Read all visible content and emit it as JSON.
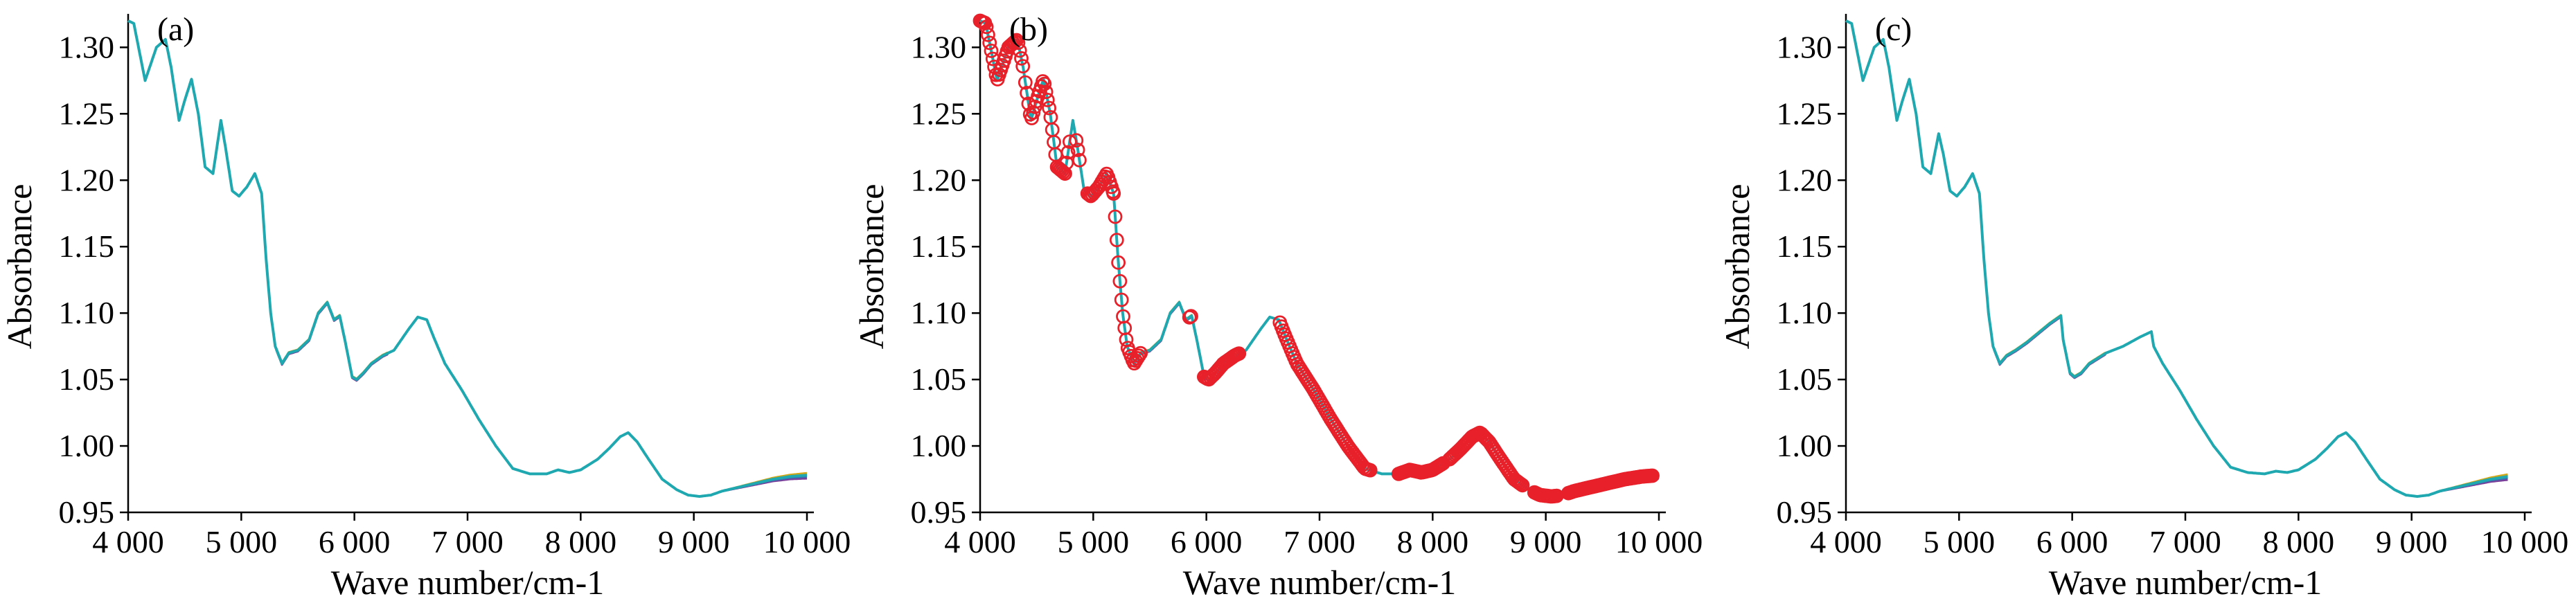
{
  "chart_data": [
    {
      "type": "line",
      "panel_label": "(a)",
      "xlabel": "Wave number/cm-1",
      "ylabel": "Absorbance",
      "xlim": [
        4000,
        10000
      ],
      "ylim": [
        0.95,
        1.32
      ],
      "xticks": [
        4000,
        5000,
        6000,
        7000,
        8000,
        9000,
        10000
      ],
      "xtick_labels": [
        "4 000",
        "5 000",
        "6 000",
        "7 000",
        "8 000",
        "9 000",
        "10 000"
      ],
      "yticks": [
        0.95,
        1.0,
        1.05,
        1.1,
        1.15,
        1.2,
        1.25,
        1.3
      ],
      "ytick_labels": [
        "0.95",
        "1.00",
        "1.05",
        "1.10",
        "1.15",
        "1.20",
        "1.25",
        "1.30"
      ],
      "grid": false,
      "series_colors": [
        "#7b3f99",
        "#3c6fb0",
        "#2e9e57",
        "#d1a818",
        "#1fa8b0"
      ],
      "series": [
        {
          "x": [
            4000,
            4050,
            4150,
            4250,
            4330,
            4380,
            4450,
            4500,
            4560,
            4620,
            4680,
            4750,
            4820,
            4860,
            4920,
            4980,
            5050,
            5120,
            5180,
            5220,
            5260,
            5300,
            5360,
            5420,
            5500,
            5600,
            5680,
            5760,
            5820,
            5870,
            5920,
            5980,
            6020,
            6080,
            6150,
            6250,
            6350,
            6480,
            6560,
            6640,
            6700,
            6800,
            6950,
            7100,
            7250,
            7400,
            7550,
            7700,
            7800,
            7900,
            8000,
            8150,
            8250,
            8350,
            8420,
            8500,
            8600,
            8720,
            8850,
            8950,
            9050,
            9150,
            9250,
            9400,
            9550,
            9700,
            9850,
            10000
          ],
          "y": [
            1.32,
            1.318,
            1.275,
            1.3,
            1.306,
            1.285,
            1.245,
            1.26,
            1.276,
            1.25,
            1.21,
            1.205,
            1.245,
            1.225,
            1.192,
            1.188,
            1.195,
            1.205,
            1.19,
            1.14,
            1.1,
            1.075,
            1.062,
            1.07,
            1.072,
            1.08,
            1.1,
            1.108,
            1.095,
            1.098,
            1.078,
            1.052,
            1.05,
            1.055,
            1.062,
            1.068,
            1.072,
            1.088,
            1.097,
            1.095,
            1.082,
            1.062,
            1.042,
            1.02,
            1.0,
            0.983,
            0.979,
            0.979,
            0.982,
            0.98,
            0.982,
            0.99,
            0.998,
            1.007,
            1.01,
            1.003,
            0.99,
            0.975,
            0.967,
            0.963,
            0.962,
            0.963,
            0.966,
            0.969,
            0.972,
            0.975,
            0.977,
            0.978
          ]
        }
      ]
    },
    {
      "type": "line",
      "panel_label": "(b)",
      "xlabel": "Wave number/cm-1",
      "ylabel": "Absorbance",
      "xlim": [
        4000,
        10000
      ],
      "ylim": [
        0.95,
        1.32
      ],
      "xticks": [
        4000,
        5000,
        6000,
        7000,
        8000,
        9000,
        10000
      ],
      "xtick_labels": [
        "4 000",
        "5 000",
        "6 000",
        "7 000",
        "8 000",
        "9 000",
        "10 000"
      ],
      "yticks": [
        0.95,
        1.0,
        1.05,
        1.1,
        1.15,
        1.2,
        1.25,
        1.3
      ],
      "ytick_labels": [
        "0.95",
        "1.00",
        "1.05",
        "1.10",
        "1.15",
        "1.20",
        "1.25",
        "1.30"
      ],
      "grid": false,
      "series_colors": [
        "#7b3f99",
        "#3c6fb0",
        "#2e9e57",
        "#d1a818",
        "#1fa8b0"
      ],
      "marker_color": "#e8202a",
      "series": [
        {
          "x": [
            4000,
            4050,
            4150,
            4250,
            4330,
            4380,
            4450,
            4500,
            4560,
            4620,
            4680,
            4750,
            4820,
            4860,
            4920,
            4980,
            5050,
            5120,
            5180,
            5220,
            5260,
            5300,
            5360,
            5420,
            5500,
            5600,
            5680,
            5760,
            5820,
            5870,
            5920,
            5980,
            6020,
            6080,
            6150,
            6250,
            6350,
            6480,
            6560,
            6640,
            6700,
            6800,
            6950,
            7100,
            7250,
            7400,
            7550,
            7700,
            7800,
            7900,
            8000,
            8150,
            8250,
            8350,
            8420,
            8500,
            8600,
            8720,
            8850,
            8950,
            9050,
            9150,
            9250,
            9400,
            9550,
            9700,
            9850,
            10000
          ],
          "y": [
            1.32,
            1.318,
            1.275,
            1.3,
            1.306,
            1.285,
            1.245,
            1.26,
            1.276,
            1.25,
            1.21,
            1.205,
            1.245,
            1.225,
            1.192,
            1.188,
            1.195,
            1.205,
            1.19,
            1.14,
            1.1,
            1.075,
            1.062,
            1.07,
            1.072,
            1.08,
            1.1,
            1.108,
            1.095,
            1.098,
            1.078,
            1.052,
            1.05,
            1.055,
            1.062,
            1.068,
            1.072,
            1.088,
            1.097,
            1.095,
            1.082,
            1.062,
            1.042,
            1.02,
            1.0,
            0.983,
            0.979,
            0.979,
            0.982,
            0.98,
            0.982,
            0.99,
            0.998,
            1.007,
            1.01,
            1.003,
            0.99,
            0.975,
            0.967,
            0.963,
            0.962,
            0.963,
            0.966,
            0.969,
            0.972,
            0.975,
            0.977,
            0.978
          ]
        }
      ],
      "marker_ranges": [
        [
          4000,
          4380
        ],
        [
          4400,
          4800
        ],
        [
          4850,
          4880
        ],
        [
          4950,
          5180
        ],
        [
          5180,
          5420
        ],
        [
          5850,
          5870
        ],
        [
          5980,
          6300
        ],
        [
          6650,
          7450
        ],
        [
          7700,
          8100
        ],
        [
          8150,
          8800
        ],
        [
          8900,
          9100
        ],
        [
          9200,
          9950
        ]
      ]
    },
    {
      "type": "line",
      "panel_label": "(c)",
      "xlabel": "Wave number/cm-1",
      "ylabel": "Absorbance",
      "xlim": [
        4000,
        10000
      ],
      "ylim": [
        0.95,
        1.32
      ],
      "xticks": [
        4000,
        5000,
        6000,
        7000,
        8000,
        9000,
        10000
      ],
      "xtick_labels": [
        "4 000",
        "5 000",
        "6 000",
        "7 000",
        "8 000",
        "9 000",
        "10 000"
      ],
      "yticks": [
        0.95,
        1.0,
        1.05,
        1.1,
        1.15,
        1.2,
        1.25,
        1.3
      ],
      "ytick_labels": [
        "0.95",
        "1.00",
        "1.05",
        "1.10",
        "1.15",
        "1.20",
        "1.25",
        "1.30"
      ],
      "grid": false,
      "series_colors": [
        "#7b3f99",
        "#3c6fb0",
        "#2e9e57",
        "#d1a818",
        "#1fa8b0"
      ],
      "series": [
        {
          "x": [
            4000,
            4050,
            4150,
            4250,
            4330,
            4380,
            4450,
            4500,
            4560,
            4620,
            4680,
            4750,
            4820,
            4860,
            4920,
            4980,
            5050,
            5120,
            5180,
            5220,
            5260,
            5300,
            5360,
            5420,
            5500,
            5600,
            5700,
            5800,
            5900,
            5920,
            5980,
            6020,
            6080,
            6150,
            6300,
            6450,
            6600,
            6700,
            6720,
            6800,
            6950,
            7100,
            7250,
            7400,
            7550,
            7700,
            7800,
            7900,
            8000,
            8150,
            8250,
            8350,
            8420,
            8500,
            8600,
            8720,
            8850,
            8950,
            9050,
            9150,
            9250,
            9400,
            9550,
            9700,
            9850
          ],
          "y": [
            1.32,
            1.318,
            1.275,
            1.3,
            1.306,
            1.285,
            1.245,
            1.26,
            1.276,
            1.25,
            1.21,
            1.205,
            1.235,
            1.22,
            1.192,
            1.188,
            1.195,
            1.205,
            1.19,
            1.14,
            1.1,
            1.075,
            1.062,
            1.068,
            1.072,
            1.078,
            1.085,
            1.092,
            1.098,
            1.08,
            1.055,
            1.052,
            1.055,
            1.062,
            1.07,
            1.075,
            1.082,
            1.086,
            1.075,
            1.062,
            1.042,
            1.02,
            1.0,
            0.984,
            0.98,
            0.979,
            0.981,
            0.98,
            0.982,
            0.99,
            0.998,
            1.007,
            1.01,
            1.003,
            0.99,
            0.975,
            0.967,
            0.963,
            0.962,
            0.963,
            0.966,
            0.969,
            0.972,
            0.975,
            0.977
          ]
        }
      ]
    }
  ]
}
